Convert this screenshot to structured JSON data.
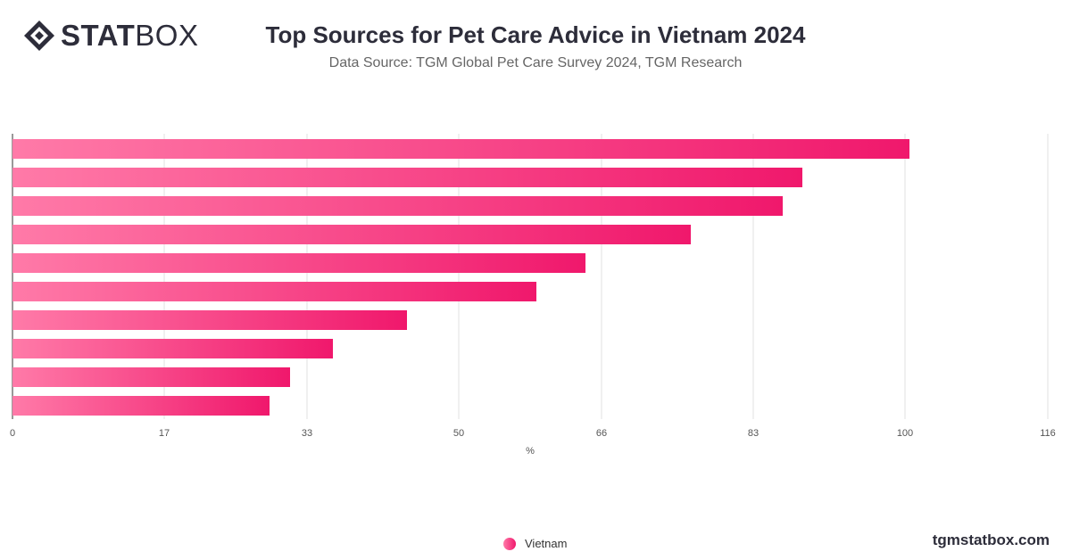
{
  "header": {
    "logo_bold": "STAT",
    "logo_light": "BOX",
    "title": "Top Sources for Pet Care Advice in Vietnam 2024",
    "subtitle": "Data Source: TGM Global Pet Care Survey 2024, TGM Research"
  },
  "footer": {
    "site": "tgmstatbox.com"
  },
  "colors": {
    "bar_start": "#ff7aa8",
    "bar_end": "#f0186c",
    "grid": "#e0e0e0",
    "text": "#333333"
  },
  "chart_data": {
    "type": "bar",
    "orientation": "horizontal",
    "categories": [
      "",
      "",
      "",
      "",
      "",
      "",
      "",
      "",
      "",
      ""
    ],
    "series": [
      {
        "name": "Vietnam",
        "values": [
          100.5,
          88.5,
          86.3,
          76.0,
          64.2,
          58.7,
          44.2,
          35.9,
          31.1,
          28.8
        ]
      }
    ],
    "xlabel": "%",
    "xlim": [
      0,
      116
    ],
    "xticks": [
      0,
      17,
      33,
      50,
      66,
      83,
      100,
      116
    ],
    "grid": true,
    "legend_position": "bottom-center"
  }
}
